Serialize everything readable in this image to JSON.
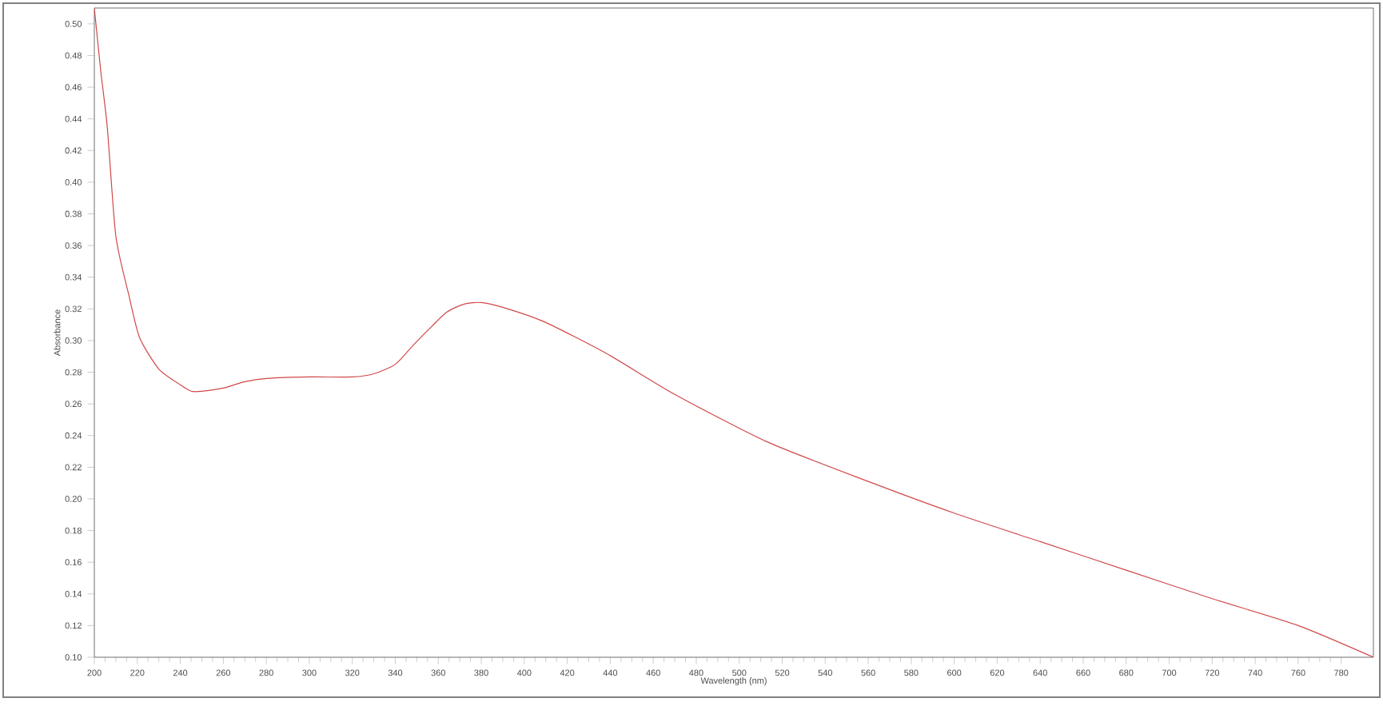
{
  "chart_data": {
    "type": "line",
    "xlabel": "Wavelength (nm)",
    "ylabel": "Absorbance",
    "x": [
      200,
      203,
      206,
      210,
      216,
      221,
      230,
      240,
      245,
      250,
      260,
      270,
      280,
      300,
      320,
      330,
      340,
      349,
      357,
      364,
      372,
      380,
      390,
      409,
      438,
      470,
      513,
      560,
      600,
      640,
      680,
      720,
      760,
      795
    ],
    "series": [
      {
        "color": "#d04848",
        "values": [
          0.51,
          0.47,
          0.435,
          0.366,
          0.329,
          0.302,
          0.282,
          0.272,
          0.268,
          0.268,
          0.27,
          0.274,
          0.276,
          0.277,
          0.277,
          0.279,
          0.285,
          0.298,
          0.309,
          0.318,
          0.323,
          0.324,
          0.321,
          0.312,
          0.292,
          0.266,
          0.236,
          0.211,
          0.191,
          0.173,
          0.155,
          0.137,
          0.12,
          0.1
        ]
      }
    ],
    "xlim": [
      200,
      795
    ],
    "ylim": [
      0.1,
      0.51
    ],
    "xticks": [
      200,
      220,
      240,
      260,
      280,
      300,
      320,
      340,
      360,
      380,
      400,
      420,
      440,
      460,
      480,
      500,
      520,
      540,
      560,
      580,
      600,
      620,
      640,
      660,
      680,
      700,
      720,
      740,
      760,
      780
    ],
    "yticks": [
      {
        "value": 0.1,
        "label": "0.10"
      },
      {
        "value": 0.12,
        "label": "0.12"
      },
      {
        "value": 0.14,
        "label": "0.14"
      },
      {
        "value": 0.16,
        "label": "0.16"
      },
      {
        "value": 0.18,
        "label": "0.18"
      },
      {
        "value": 0.2,
        "label": "0.20"
      },
      {
        "value": 0.22,
        "label": "0.22"
      },
      {
        "value": 0.24,
        "label": "0.24"
      },
      {
        "value": 0.26,
        "label": "0.26"
      },
      {
        "value": 0.28,
        "label": "0.28"
      },
      {
        "value": 0.3,
        "label": "0.30"
      },
      {
        "value": 0.32,
        "label": "0.32"
      },
      {
        "value": 0.34,
        "label": "0.34"
      },
      {
        "value": 0.36,
        "label": "0.36"
      },
      {
        "value": 0.38,
        "label": "0.38"
      },
      {
        "value": 0.4,
        "label": "0.40"
      },
      {
        "value": 0.42,
        "label": "0.42"
      },
      {
        "value": 0.44,
        "label": "0.44"
      },
      {
        "value": 0.46,
        "label": "0.46"
      },
      {
        "value": 0.48,
        "label": "0.48"
      },
      {
        "value": 0.5,
        "label": "0.50"
      }
    ],
    "marker": "none",
    "line_style": "solid"
  }
}
